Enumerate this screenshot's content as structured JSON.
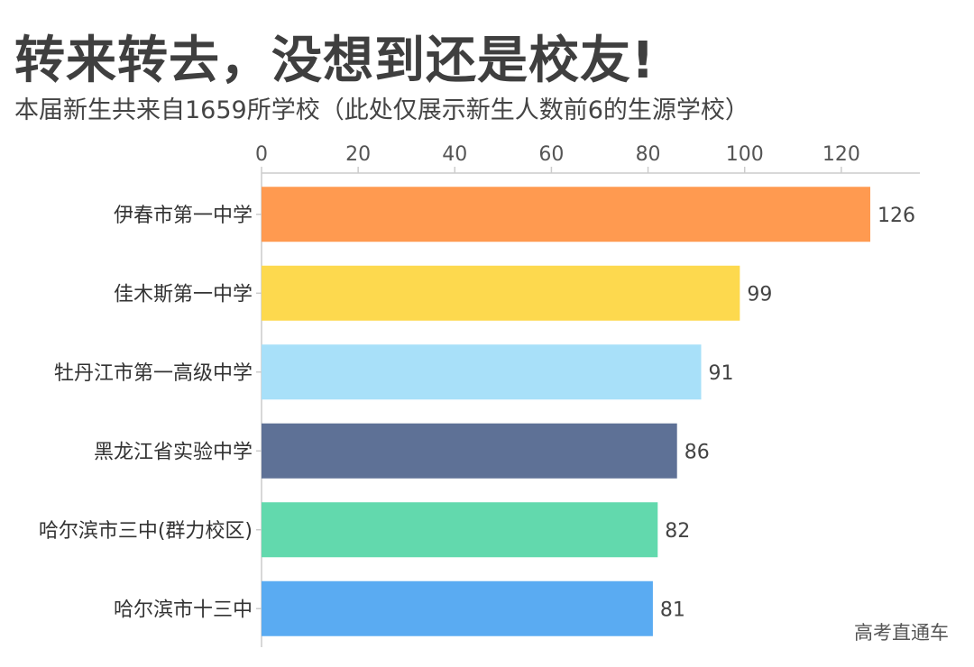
{
  "header": {
    "title": "转来转去，没想到还是校友!",
    "subtitle": "本届新生共来自1659所学校（此处仅展示新生人数前6的生源学校）"
  },
  "watermark": "高考直通车",
  "chart_data": {
    "type": "bar",
    "orientation": "horizontal",
    "title": "",
    "xlabel": "",
    "ylabel": "",
    "xlim": [
      0,
      130
    ],
    "xticks": [
      0,
      20,
      40,
      60,
      80,
      100,
      120
    ],
    "axis_position": "top",
    "grid": false,
    "legend": "none",
    "categories": [
      "伊春市第一中学",
      "佳木斯第一中学",
      "牡丹江市第一高级中学",
      "黑龙江省实验中学",
      "哈尔滨市三中(群力校区)",
      "哈尔滨市十三中"
    ],
    "values": [
      126,
      99,
      91,
      86,
      82,
      81
    ],
    "colors": [
      "#FF9A50",
      "#FDD94E",
      "#A8E0F9",
      "#5E7196",
      "#62D9AD",
      "#5AABF2"
    ]
  }
}
